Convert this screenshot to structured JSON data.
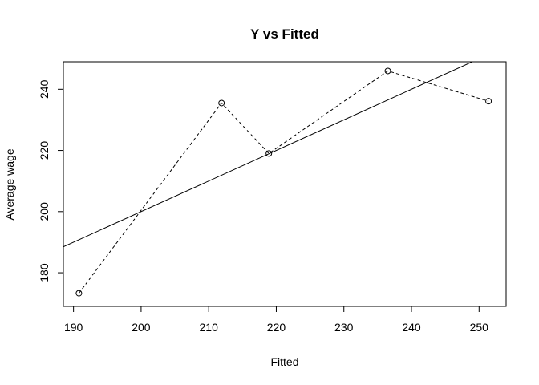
{
  "chart_data": {
    "type": "scatter",
    "title": "Y vs Fitted",
    "xlabel": "Fitted",
    "ylabel": "Average wage",
    "xlim": [
      188.5,
      254
    ],
    "ylim": [
      169,
      249
    ],
    "xticks": [
      190,
      200,
      210,
      220,
      230,
      240,
      250
    ],
    "yticks": [
      180,
      200,
      220,
      240
    ],
    "grid": false,
    "legend": "none",
    "series": [
      {
        "style": "points-dashed",
        "x": [
          190.8,
          211.9,
          218.9,
          236.5,
          251.4
        ],
        "y": [
          173.3,
          235.5,
          219.0,
          246.0,
          236.1
        ]
      }
    ],
    "reference_line": {
      "type": "abline",
      "intercept": 0,
      "slope": 1
    },
    "colors": {
      "line": "#000000",
      "background": "#ffffff"
    }
  }
}
